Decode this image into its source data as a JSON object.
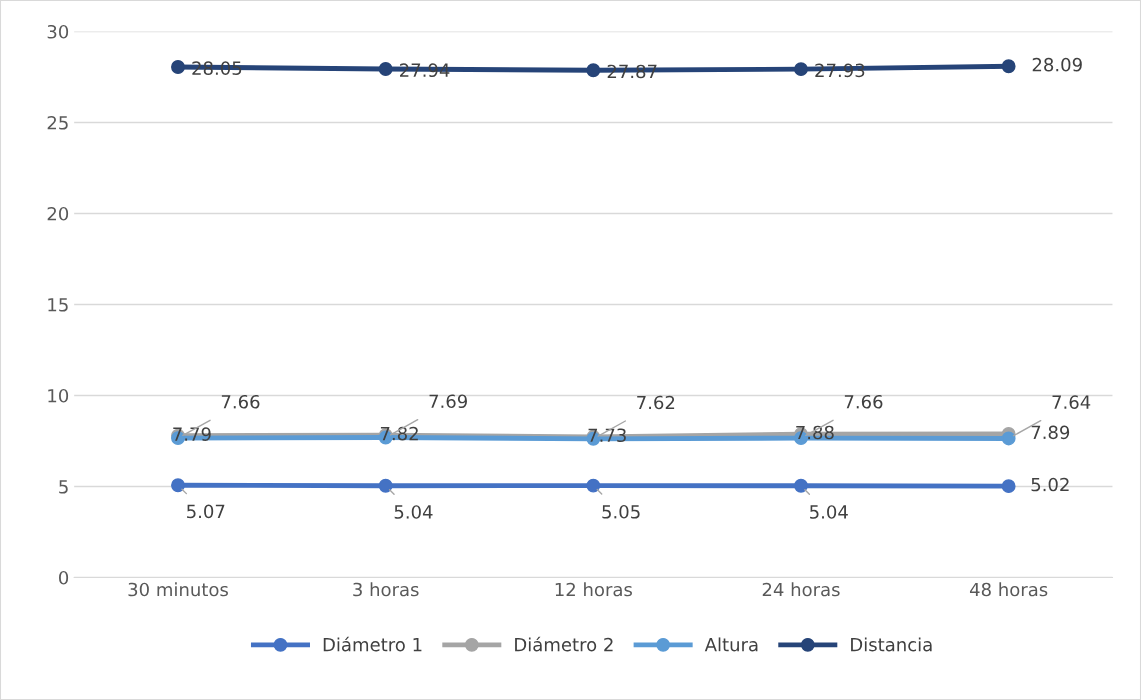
{
  "chart_data": {
    "type": "line",
    "categories": [
      "30 minutos",
      "3 horas",
      "12 horas",
      "24 horas",
      "48 horas"
    ],
    "series": [
      {
        "name": "Diámetro 1",
        "color": "#4472c4",
        "values": [
          5.07,
          5.04,
          5.05,
          5.04,
          5.02
        ]
      },
      {
        "name": "Diámetro 2",
        "color": "#a5a5a5",
        "values": [
          7.79,
          7.82,
          7.73,
          7.88,
          7.89
        ]
      },
      {
        "name": "Altura",
        "color": "#5b9bd5",
        "values": [
          7.66,
          7.69,
          7.62,
          7.66,
          7.64
        ]
      },
      {
        "name": "Distancia",
        "color": "#264478",
        "values": [
          28.05,
          27.94,
          27.87,
          27.93,
          28.09
        ]
      }
    ],
    "ylim": [
      0,
      30
    ],
    "yticks": [
      0,
      5,
      10,
      15,
      20,
      25,
      30
    ],
    "grid": "y",
    "legend": "bottom",
    "marker": "circle",
    "line_style": "solid",
    "data_labels": true
  }
}
